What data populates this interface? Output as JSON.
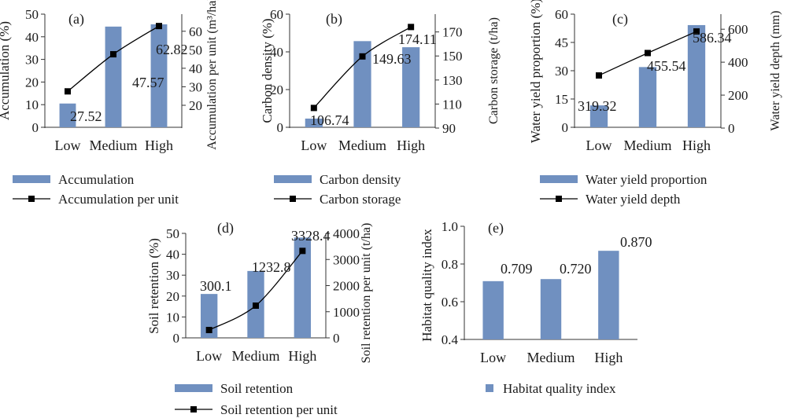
{
  "colors": {
    "bar": "#7090c0",
    "line": "#000000",
    "axis": "#333333"
  },
  "chart_data": [
    {
      "id": "a",
      "type": "bar+line",
      "panel_label": "(a)",
      "categories": [
        "Low",
        "Medium",
        "High"
      ],
      "bars": {
        "name": "Accumulation",
        "values": [
          10.5,
          44.5,
          45.5
        ]
      },
      "line": {
        "name": "Accumulation per unit",
        "values": [
          27.52,
          47.57,
          62.82
        ],
        "labels": [
          "27.52",
          "47.57",
          "62.82"
        ]
      },
      "ylabel_left": "Accumulation (%)",
      "ylabel_right": "Accumulation per unit (m³/ha)",
      "ylim_left": [
        0,
        50
      ],
      "yticks_left": [
        "0",
        "10",
        "20",
        "30",
        "40",
        "50"
      ],
      "ylim_right": [
        20,
        65
      ],
      "yticks_right": [
        "20",
        "30",
        "40",
        "50",
        "60"
      ]
    },
    {
      "id": "b",
      "type": "bar+line",
      "panel_label": "(b)",
      "categories": [
        "Low",
        "Medium",
        "High"
      ],
      "bars": {
        "name": "Carbon density",
        "values": [
          5,
          49.5,
          46
        ]
      },
      "line": {
        "name": "Carbon storage",
        "values": [
          106.74,
          149.63,
          174.11
        ],
        "labels": [
          "106.74",
          "149.63",
          "174.11"
        ]
      },
      "ylabel_left": "Carbon density (%)",
      "ylabel_right": "Carbon storage (t/ha)",
      "ylim_left": [
        0,
        65
      ],
      "yticks_left": [
        "0",
        "20",
        "40",
        "60"
      ],
      "ylim_right": [
        90,
        175
      ],
      "yticks_right": [
        "90",
        "110",
        "130",
        "150",
        "170"
      ]
    },
    {
      "id": "c",
      "type": "bar+line",
      "panel_label": "(c)",
      "categories": [
        "Low",
        "Medium",
        "High"
      ],
      "bars": {
        "name": "Water yield proportion",
        "values": [
          12,
          33,
          56
        ]
      },
      "line": {
        "name": "Water yield depth",
        "values": [
          319.32,
          455.54,
          586.34
        ],
        "labels": [
          "319.32",
          "455.54",
          "586.34"
        ]
      },
      "ylabel_left": "Water yield proportion (%)",
      "ylabel_right": "Water yield depth (mm)",
      "ylim_left": [
        0,
        62
      ],
      "yticks_left": [
        "0",
        "15",
        "30",
        "45",
        "60"
      ],
      "ylim_right": [
        0,
        620
      ],
      "yticks_right": [
        "0",
        "200",
        "400",
        "600"
      ]
    },
    {
      "id": "d",
      "type": "bar+line",
      "panel_label": "(d)",
      "categories": [
        "Low",
        "Medium",
        "High"
      ],
      "bars": {
        "name": "Soil retention",
        "values": [
          21,
          32,
          48
        ]
      },
      "line": {
        "name": "Soil retention per unit",
        "values": [
          300.1,
          1232.8,
          3328.4
        ],
        "labels": [
          "300.1",
          "1232.8",
          "3328.4"
        ]
      },
      "ylabel_left": "Soil retention (%)",
      "ylabel_right": "Soil retention per unit (t/ha)",
      "ylim_left": [
        0,
        50
      ],
      "yticks_left": [
        "0",
        "10",
        "20",
        "30",
        "40",
        "50"
      ],
      "ylim_right": [
        0,
        4000
      ],
      "yticks_right": [
        "0",
        "1000",
        "2000",
        "3000",
        "4000"
      ]
    },
    {
      "id": "e",
      "type": "bar",
      "panel_label": "(e)",
      "categories": [
        "Low",
        "Medium",
        "High"
      ],
      "bars": {
        "name": "Habitat quality index",
        "values": [
          0.709,
          0.72,
          0.87
        ],
        "labels": [
          "0.709",
          "0.720",
          "0.870"
        ]
      },
      "ylabel_left": "Habitat quality index",
      "ylim_left": [
        0.4,
        1.0
      ],
      "yticks_left": [
        "0.4",
        "0.6",
        "0.8",
        "1.0"
      ]
    }
  ]
}
